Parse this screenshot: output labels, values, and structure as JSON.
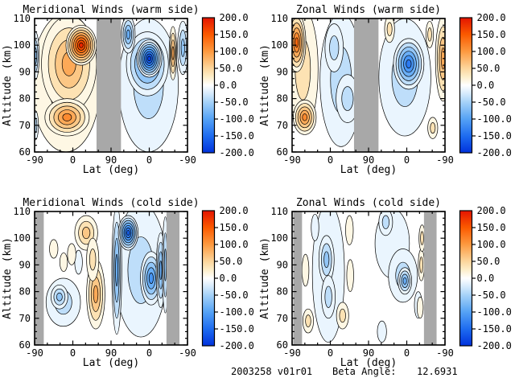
{
  "footer": {
    "dataset": "2003258 v01r01",
    "beta_label": "Beta Angle:",
    "beta_value": "12.6931"
  },
  "colors": {
    "background": "#ffffff",
    "frame": "#000000",
    "contour_line": "#000000",
    "missing_gray": "#a8a8a8"
  },
  "colormap": {
    "stops": [
      [
        -200,
        "#0032dc"
      ],
      [
        -150,
        "#1e6cf0"
      ],
      [
        -100,
        "#55a2f5"
      ],
      [
        -50,
        "#a6d2f8"
      ],
      [
        -25,
        "#d5eafc"
      ],
      [
        0,
        "#ffffff"
      ],
      [
        25,
        "#fdeec9"
      ],
      [
        50,
        "#fcd69c"
      ],
      [
        100,
        "#fd9a40"
      ],
      [
        150,
        "#fb5a00"
      ],
      [
        200,
        "#e41400"
      ]
    ]
  },
  "chart_data": {
    "type": "heatmap",
    "subtype": "filled-contour",
    "grid": false,
    "contour_interval": 25,
    "x": {
      "label": "Lat (deg)",
      "ticks": [
        "-90",
        "0",
        "90",
        "0",
        "-90"
      ]
    },
    "y": {
      "label": "Altitude (km)",
      "ticks": [
        60,
        70,
        80,
        90,
        100,
        110
      ],
      "range": [
        60,
        110
      ]
    },
    "colorbar": {
      "labels": [
        "200.0",
        "150.0",
        "100.0",
        "50.0",
        "0.0",
        "-50.0",
        "-100.0",
        "-150.0",
        "-200.0"
      ],
      "range": [
        -200,
        200
      ],
      "position": "right"
    },
    "features_format": "[x_pos in tick-interval units 0..4, altitude_km, rx_tick_units, ry_km, peak_value] — nested contour blobs at 25-unit levels, estimated from plot",
    "panels": [
      {
        "id": "meridional-warm",
        "title": "Meridional Winds (warm side)",
        "gray_bands": [
          [
            1.62,
            2.26
          ]
        ],
        "features": [
          [
            0.82,
            86,
            0.9,
            26,
            50
          ],
          [
            0.9,
            93,
            0.72,
            18,
            100
          ],
          [
            0.85,
            73,
            0.58,
            7,
            125
          ],
          [
            1.22,
            100,
            0.4,
            7.5,
            200
          ],
          [
            0.02,
            96,
            0.1,
            9,
            -75
          ],
          [
            0.02,
            70,
            0.08,
            5.5,
            -50
          ],
          [
            2.98,
            85,
            0.78,
            25,
            -50
          ],
          [
            2.95,
            93,
            0.55,
            12,
            -125
          ],
          [
            3.0,
            95,
            0.33,
            7,
            -200
          ],
          [
            2.45,
            104,
            0.18,
            7,
            -100
          ],
          [
            3.62,
            97,
            0.1,
            10,
            100
          ],
          [
            3.88,
            99,
            0.14,
            10,
            -75
          ]
        ]
      },
      {
        "id": "zonal-warm",
        "title": "Zonal Winds (warm side)",
        "gray_bands": [
          [
            1.62,
            2.26
          ]
        ],
        "features": [
          [
            0.28,
            91,
            0.4,
            23,
            50
          ],
          [
            0.12,
            101,
            0.24,
            11,
            150
          ],
          [
            0.33,
            73,
            0.3,
            6.5,
            125
          ],
          [
            1.28,
            87,
            0.55,
            25,
            -50
          ],
          [
            1.1,
            99,
            0.24,
            9,
            -50
          ],
          [
            1.45,
            80,
            0.3,
            9,
            -50
          ],
          [
            2.95,
            88,
            0.68,
            22,
            -50
          ],
          [
            3.05,
            93,
            0.4,
            9.5,
            -150
          ],
          [
            3.95,
            95,
            0.2,
            16,
            100
          ],
          [
            3.68,
            69,
            0.13,
            4,
            50
          ],
          [
            2.55,
            106,
            0.13,
            5,
            50
          ],
          [
            3.6,
            104,
            0.1,
            5,
            50
          ]
        ]
      },
      {
        "id": "meridional-cold",
        "title": "Meridional Winds (cold side)",
        "gray_bands": [
          [
            0,
            0.24
          ],
          [
            3.45,
            3.79
          ]
        ],
        "features": [
          [
            0.75,
            76,
            0.45,
            9,
            -50
          ],
          [
            0.65,
            78,
            0.22,
            4.5,
            -75
          ],
          [
            1.15,
            91,
            0.1,
            4.5,
            -25
          ],
          [
            1.35,
            102,
            0.3,
            6.5,
            75
          ],
          [
            1.6,
            79,
            0.24,
            13,
            100
          ],
          [
            1.52,
            92,
            0.16,
            8,
            50
          ],
          [
            0.5,
            96,
            0.11,
            3.5,
            25
          ],
          [
            0.76,
            91,
            0.1,
            3.5,
            25
          ],
          [
            0.97,
            94,
            0.11,
            4,
            25
          ],
          [
            2.78,
            88,
            0.68,
            25,
            -50
          ],
          [
            2.15,
            88,
            0.13,
            24,
            -100
          ],
          [
            2.45,
            102,
            0.26,
            6.5,
            -175
          ],
          [
            3.05,
            85,
            0.28,
            10,
            -125
          ],
          [
            3.3,
            88,
            0.12,
            14,
            -100
          ],
          [
            3.42,
            90,
            0.08,
            18,
            -75
          ]
        ]
      },
      {
        "id": "zonal-cold",
        "title": "Zonal Winds (cold side)",
        "gray_bands": [
          [
            0.03,
            0.26
          ],
          [
            3.45,
            3.78
          ]
        ],
        "features": [
          [
            0.95,
            87,
            0.42,
            26,
            -25
          ],
          [
            0.9,
            92,
            0.2,
            9,
            -75
          ],
          [
            0.95,
            78,
            0.18,
            8,
            -50
          ],
          [
            0.6,
            104,
            0.1,
            5,
            -25
          ],
          [
            2.62,
            98,
            0.45,
            13,
            -25
          ],
          [
            2.9,
            86,
            0.38,
            10,
            -50
          ],
          [
            2.95,
            84,
            0.18,
            5,
            -100
          ],
          [
            2.45,
            106,
            0.18,
            5,
            -50
          ],
          [
            0.42,
            69,
            0.14,
            4.5,
            50
          ],
          [
            1.32,
            71,
            0.16,
            5,
            50
          ],
          [
            1.5,
            103,
            0.1,
            5.5,
            25
          ],
          [
            1.52,
            86,
            0.09,
            6,
            25
          ],
          [
            0.35,
            88,
            0.09,
            6,
            25
          ],
          [
            2.35,
            65,
            0.12,
            4,
            -25
          ],
          [
            3.3,
            75,
            0.1,
            5,
            -25
          ],
          [
            3.38,
            90,
            0.08,
            6,
            50
          ],
          [
            3.35,
            74,
            0.08,
            4,
            25
          ],
          [
            3.4,
            100,
            0.08,
            5,
            50
          ]
        ]
      }
    ]
  }
}
